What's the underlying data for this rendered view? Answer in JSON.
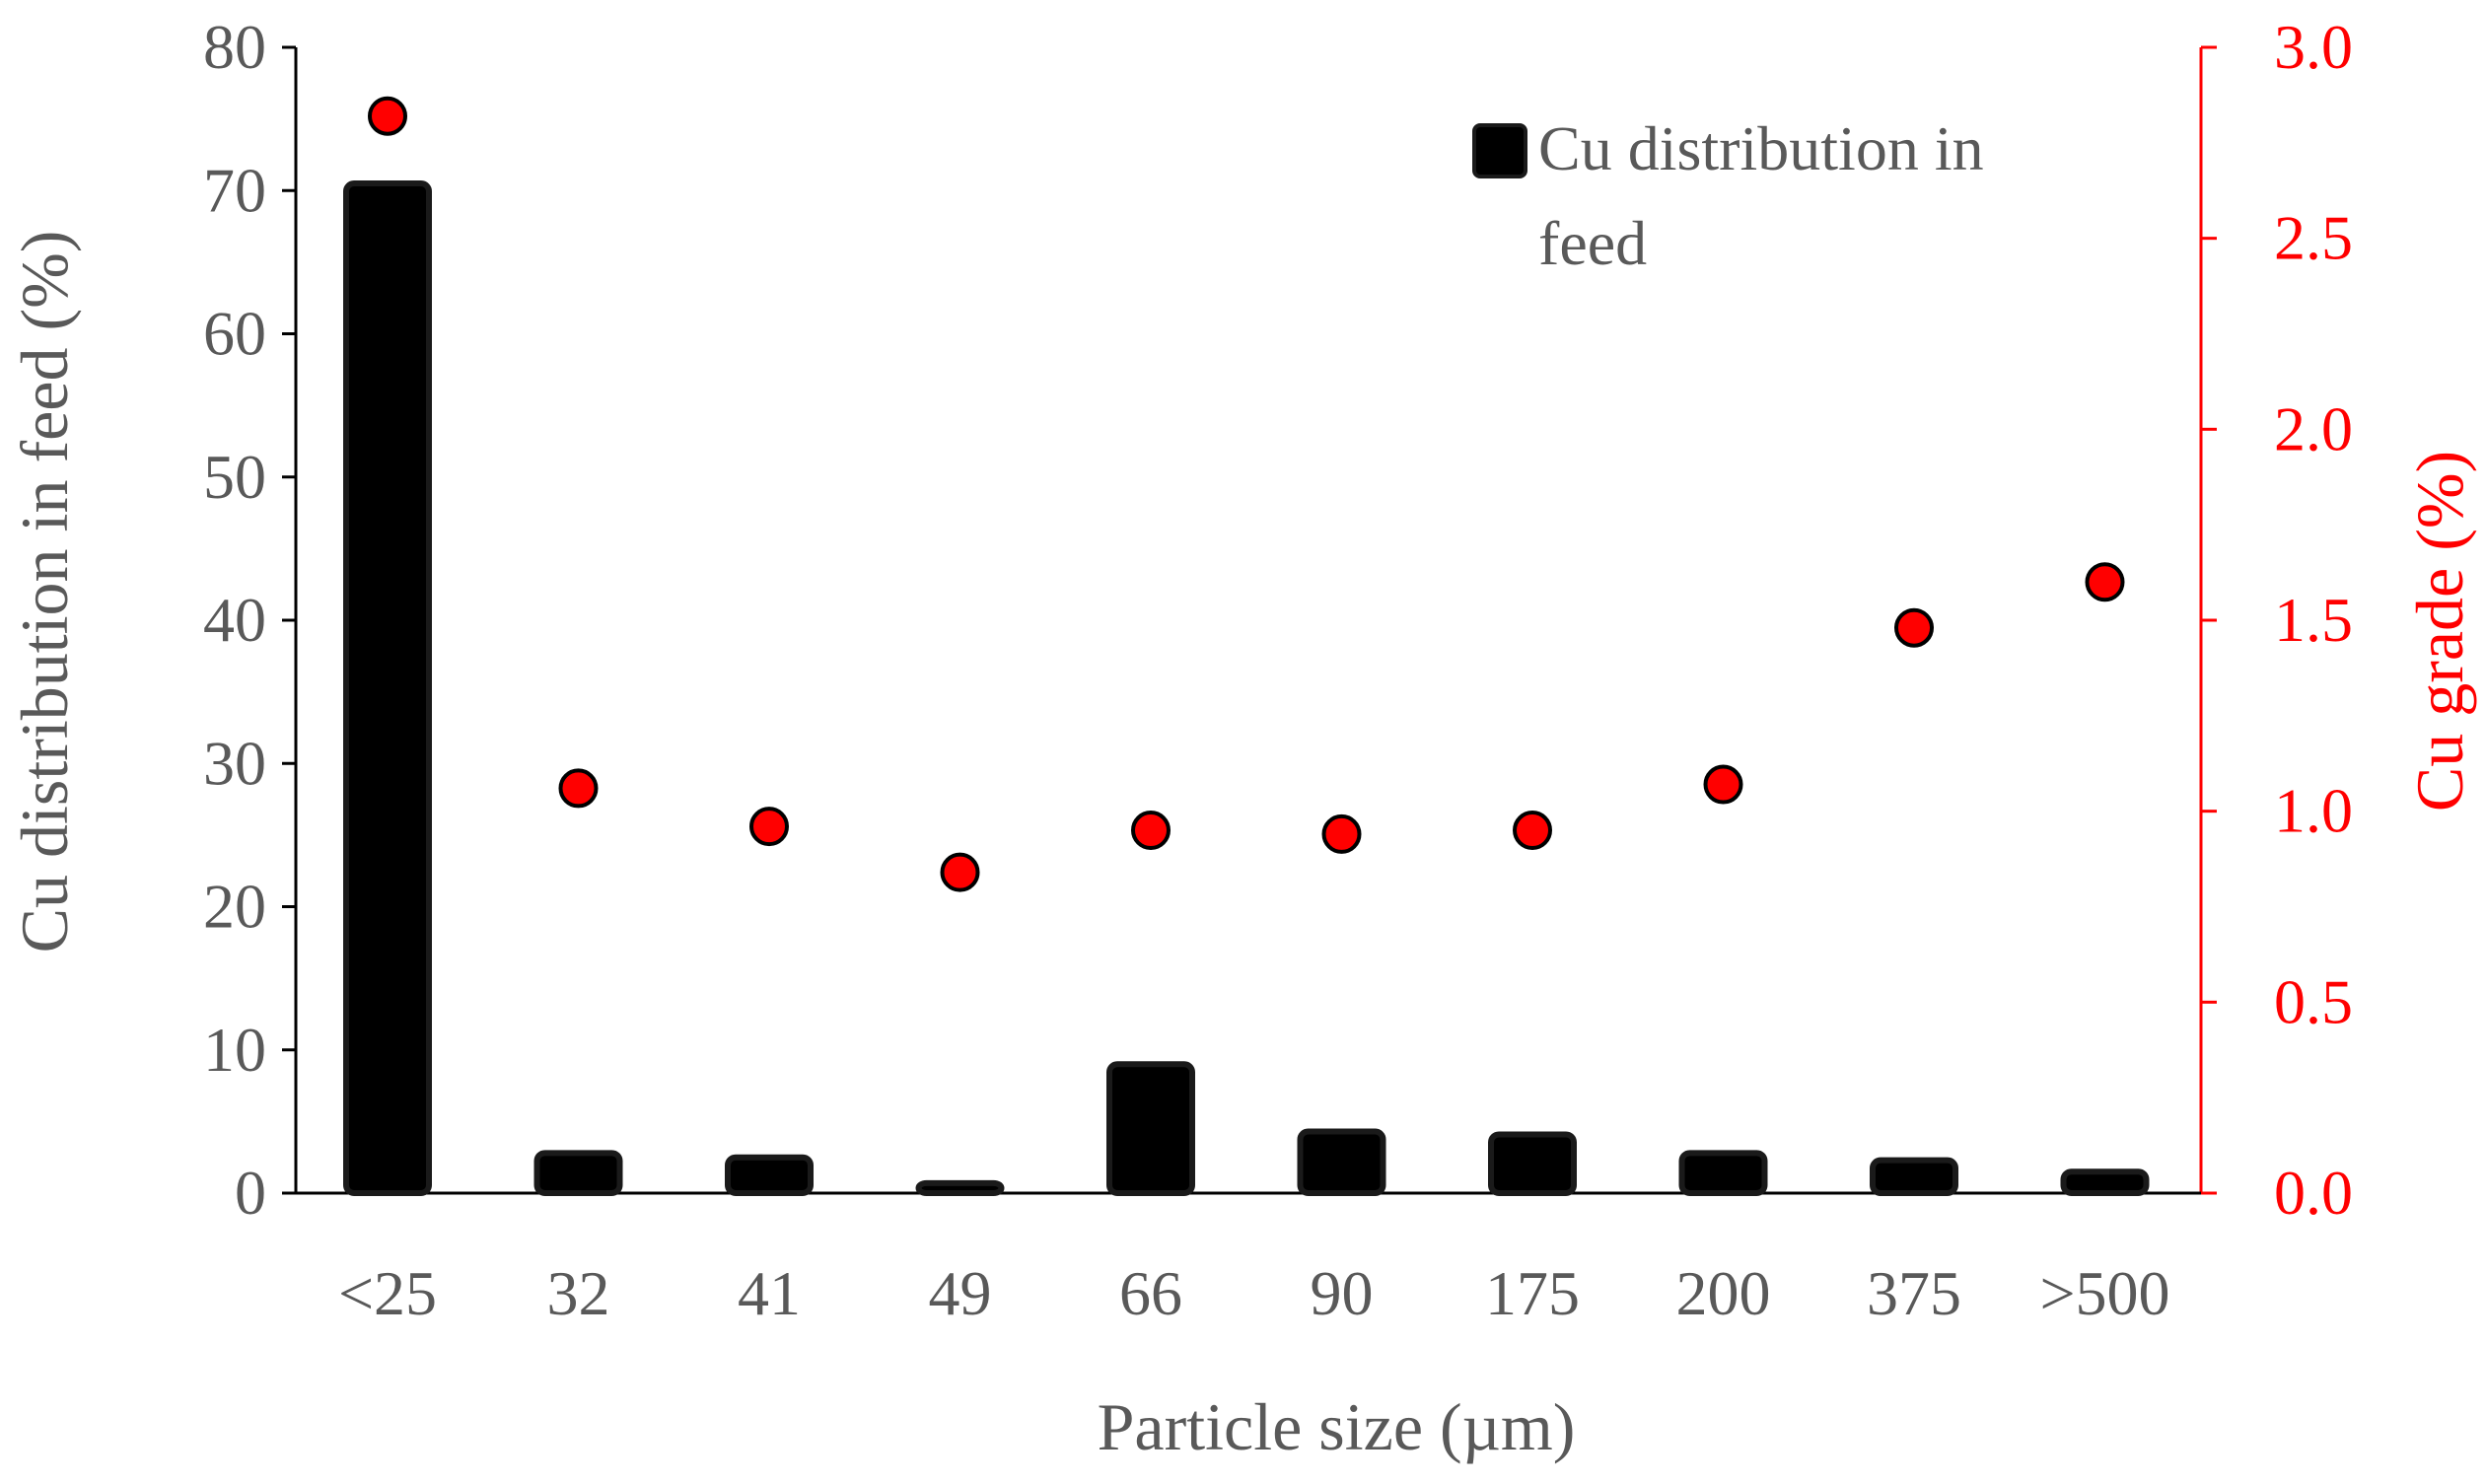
{
  "chart_data": {
    "type": "bar+scatter",
    "categories": [
      "<25",
      "32",
      "41",
      "49",
      "66",
      "90",
      "175",
      "200",
      "375",
      ">500"
    ],
    "series": [
      {
        "name": "Cu distribution in feed",
        "kind": "bar",
        "axis": "left",
        "values": [
          70.5,
          2.8,
          2.5,
          0.7,
          9.0,
          4.3,
          4.1,
          2.8,
          2.3,
          1.5
        ]
      },
      {
        "name": "Cu grade",
        "kind": "scatter",
        "axis": "right",
        "values": [
          2.82,
          1.06,
          0.96,
          0.84,
          0.95,
          0.94,
          0.95,
          1.07,
          1.48,
          1.6
        ]
      }
    ],
    "xlabel": "Particle size (µm)",
    "ylabel_left": "Cu distribution in feed (%)",
    "ylabel_right": "Cu grade (%)",
    "ylim_left": [
      0,
      80
    ],
    "ylim_right": [
      0,
      3.0
    ],
    "yticks_left": [
      "0",
      "10",
      "20",
      "30",
      "40",
      "50",
      "60",
      "70",
      "80"
    ],
    "yticks_right": [
      "0.0",
      "0.5",
      "1.0",
      "1.5",
      "2.0",
      "2.5",
      "3.0"
    ],
    "legend": {
      "line1": "Cu distribution in",
      "line2": "feed",
      "placement": "top-right"
    },
    "colors": {
      "bar": "#0d0d0d",
      "bar_inner": "#000000",
      "marker": "#ff0000",
      "marker_edge": "#000000",
      "left_axis": "#000000",
      "right_axis": "#ff0000",
      "text": "#595959",
      "right_text": "#ff0000"
    }
  }
}
